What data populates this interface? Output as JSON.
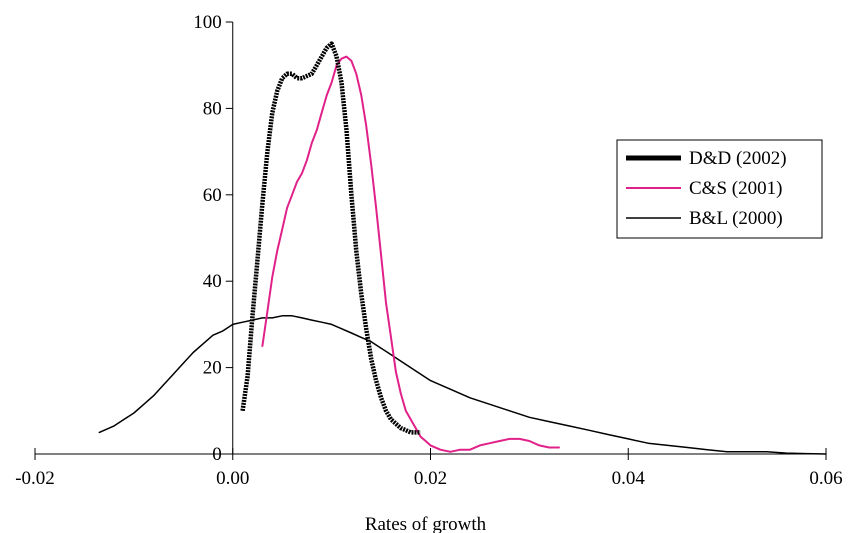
{
  "chart_data": {
    "type": "line",
    "title": "",
    "xlabel": "Rates of growth",
    "ylabel": "",
    "xlim": [
      -0.02,
      0.06
    ],
    "ylim": [
      0,
      100
    ],
    "grid": false,
    "legend_position": "right",
    "x_ticks": [
      {
        "value": -0.02,
        "label": "-0.02"
      },
      {
        "value": 0.0,
        "label": "0.00"
      },
      {
        "value": 0.02,
        "label": "0.02"
      },
      {
        "value": 0.04,
        "label": "0.04"
      },
      {
        "value": 0.06,
        "label": "0.06"
      }
    ],
    "y_ticks": [
      {
        "value": 0,
        "label": "0"
      },
      {
        "value": 20,
        "label": "20"
      },
      {
        "value": 40,
        "label": "40"
      },
      {
        "value": 60,
        "label": "60"
      },
      {
        "value": 80,
        "label": "80"
      },
      {
        "value": 100,
        "label": "100"
      }
    ],
    "series": [
      {
        "name": "D&D (2002)",
        "color": "#000000",
        "style": "thick",
        "x": [
          0.001,
          0.0015,
          0.002,
          0.0025,
          0.003,
          0.0035,
          0.004,
          0.0045,
          0.005,
          0.0055,
          0.006,
          0.0065,
          0.007,
          0.0075,
          0.008,
          0.0085,
          0.009,
          0.0095,
          0.01,
          0.0105,
          0.011,
          0.0115,
          0.012,
          0.0125,
          0.013,
          0.0135,
          0.014,
          0.0145,
          0.015,
          0.0155,
          0.016,
          0.0165,
          0.017,
          0.0175,
          0.018,
          0.0185,
          0.019
        ],
        "y": [
          10,
          18,
          32,
          45,
          58,
          70,
          79,
          84,
          87,
          88,
          88,
          87,
          87,
          87.5,
          88,
          90,
          92,
          94,
          95,
          92,
          86,
          75,
          60,
          47,
          37,
          29,
          22,
          17,
          13,
          10,
          8,
          7,
          6,
          5.5,
          5,
          5,
          5
        ]
      },
      {
        "name": "C&S (2001)",
        "color": "#e0218a",
        "style": "thin",
        "x": [
          0.003,
          0.0035,
          0.004,
          0.0045,
          0.005,
          0.0055,
          0.006,
          0.0065,
          0.007,
          0.0075,
          0.008,
          0.0085,
          0.009,
          0.0095,
          0.01,
          0.0105,
          0.011,
          0.0115,
          0.012,
          0.0125,
          0.013,
          0.0135,
          0.014,
          0.0145,
          0.015,
          0.0155,
          0.016,
          0.0165,
          0.017,
          0.0175,
          0.018,
          0.0185,
          0.019,
          0.0195,
          0.02,
          0.021,
          0.022,
          0.023,
          0.024,
          0.025,
          0.026,
          0.027,
          0.028,
          0.029,
          0.03,
          0.031,
          0.032,
          0.033
        ],
        "y": [
          25,
          33,
          41,
          47,
          52,
          57,
          60,
          63,
          65,
          68,
          72,
          75,
          79,
          83,
          86,
          90,
          91.5,
          92,
          91,
          88,
          83,
          76,
          67,
          57,
          46,
          35,
          27,
          19,
          14,
          10,
          8,
          6,
          4,
          3,
          2,
          1,
          0.5,
          1,
          1,
          2,
          2.5,
          3,
          3.5,
          3.5,
          3,
          2,
          1.5,
          1.5
        ]
      },
      {
        "name": "B&L (2000)",
        "color": "#000000",
        "style": "thin",
        "x": [
          -0.0135,
          -0.012,
          -0.011,
          -0.01,
          -0.009,
          -0.008,
          -0.007,
          -0.006,
          -0.005,
          -0.004,
          -0.003,
          -0.002,
          -0.001,
          0.0,
          0.001,
          0.002,
          0.003,
          0.004,
          0.005,
          0.006,
          0.007,
          0.008,
          0.009,
          0.01,
          0.011,
          0.012,
          0.013,
          0.014,
          0.015,
          0.016,
          0.017,
          0.018,
          0.019,
          0.02,
          0.022,
          0.024,
          0.026,
          0.028,
          0.03,
          0.032,
          0.034,
          0.036,
          0.038,
          0.04,
          0.042,
          0.044,
          0.046,
          0.048,
          0.05,
          0.052,
          0.054,
          0.056,
          0.058,
          0.06
        ],
        "y": [
          5,
          6.5,
          8,
          9.5,
          11.5,
          13.5,
          16,
          18.5,
          21,
          23.5,
          25.5,
          27.5,
          28.5,
          30,
          30.5,
          31,
          31.5,
          31.5,
          32,
          32,
          31.5,
          31,
          30.5,
          30,
          29,
          28,
          27,
          26,
          24.5,
          23,
          21.5,
          20,
          18.5,
          17,
          15,
          13,
          11.5,
          10,
          8.5,
          7.5,
          6.5,
          5.5,
          4.5,
          3.5,
          2.5,
          2,
          1.5,
          1,
          0.5,
          0.5,
          0.5,
          0.2,
          0.1,
          0
        ]
      }
    ]
  }
}
